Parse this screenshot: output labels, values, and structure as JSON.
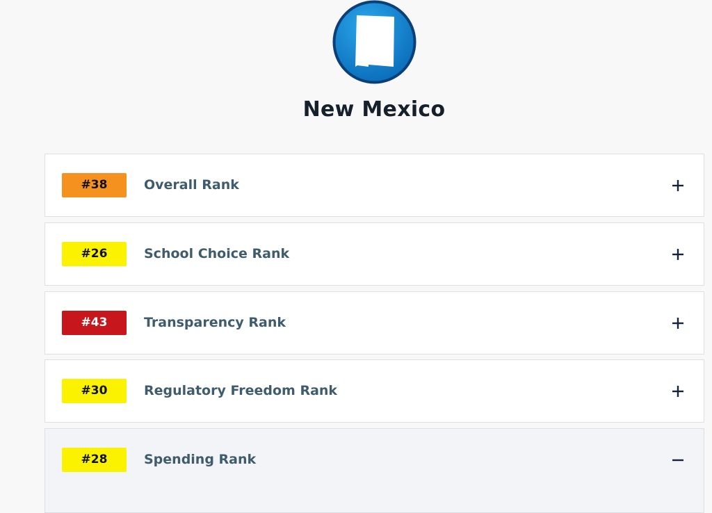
{
  "header": {
    "title": "New Mexico"
  },
  "ranks": [
    {
      "rank": "#38",
      "label": "Overall Rank",
      "badge_color": "#f5911e",
      "badge_text_color": "#111111",
      "expanded": false
    },
    {
      "rank": "#26",
      "label": "School Choice Rank",
      "badge_color": "#fbf200",
      "badge_text_color": "#111111",
      "expanded": false
    },
    {
      "rank": "#43",
      "label": "Transparency Rank",
      "badge_color": "#c8161d",
      "badge_text_color": "#ffffff",
      "expanded": false
    },
    {
      "rank": "#30",
      "label": "Regulatory Freedom Rank",
      "badge_color": "#fbf200",
      "badge_text_color": "#111111",
      "expanded": false
    },
    {
      "rank": "#28",
      "label": "Spending Rank",
      "badge_color": "#fbf200",
      "badge_text_color": "#111111",
      "expanded": true
    }
  ]
}
